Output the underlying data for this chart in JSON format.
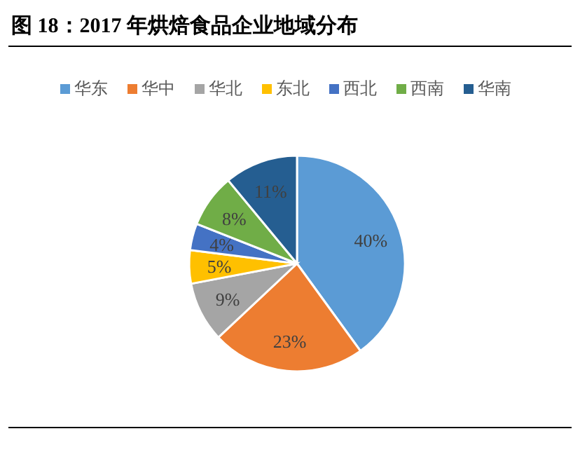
{
  "chart_data": {
    "type": "pie",
    "title": "图 18：2017 年烘焙食品企业地域分布",
    "categories": [
      "华东",
      "华中",
      "华北",
      "东北",
      "西北",
      "西南",
      "华南"
    ],
    "values": [
      40,
      23,
      9,
      5,
      4,
      8,
      11
    ],
    "colors": [
      "#5b9bd5",
      "#ed7d31",
      "#a5a5a5",
      "#ffc000",
      "#4472c4",
      "#70ad47",
      "#255e91"
    ],
    "value_labels": [
      "40%",
      "23%",
      "9%",
      "5%",
      "4%",
      "8%",
      "11%"
    ],
    "legend": "top"
  }
}
